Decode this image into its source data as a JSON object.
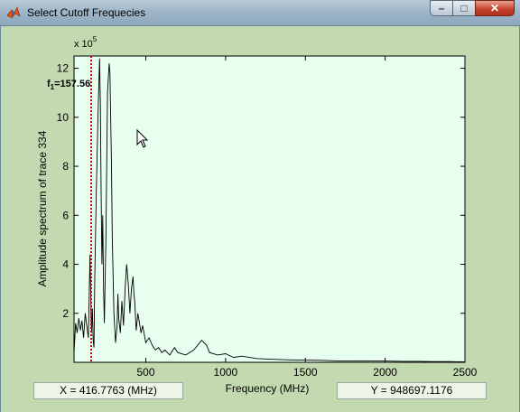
{
  "window": {
    "title": "Select Cutoff Frequecies",
    "buttons": {
      "minimize": "–",
      "maximize": "□",
      "close": "✕"
    }
  },
  "readouts": {
    "x": "X = 416.7763 (MHz)",
    "y": "Y = 948697.1176"
  },
  "colors": {
    "plot_bg": "#e8ffef",
    "figure_bg": "#c3dab0",
    "cutoff": "#cc0000",
    "line": "#000000"
  },
  "chart_data": {
    "type": "line",
    "xlabel": "Frequency (MHz)",
    "ylabel": "Amplitude spectrum of trace 334",
    "xlim": [
      50,
      2500
    ],
    "ylim": [
      0,
      1250000
    ],
    "y_exponent_label": "x 10",
    "y_exponent": "5",
    "xticks": [
      500,
      1000,
      1500,
      2000,
      2500
    ],
    "xtick_labels": [
      "500",
      "1000",
      "1500",
      "2000",
      "2500"
    ],
    "yticks": [
      2,
      4,
      6,
      8,
      10,
      12
    ],
    "ytick_labels": [
      "2",
      "4",
      "6",
      "8",
      "10",
      "12"
    ],
    "grid": false,
    "cutoff": {
      "label": "f",
      "subscript": "1",
      "value_text": "=157.56",
      "x": 157.56
    },
    "series": [
      {
        "x": [
          50,
          60,
          70,
          80,
          90,
          100,
          110,
          120,
          130,
          140,
          150,
          155,
          160,
          165,
          170,
          175,
          180,
          190,
          200,
          210,
          215,
          220,
          225,
          230,
          235,
          240,
          250,
          260,
          270,
          275,
          280,
          285,
          290,
          300,
          310,
          320,
          325,
          330,
          340,
          350,
          360,
          370,
          380,
          390,
          400,
          410,
          420,
          425,
          430,
          440,
          450,
          460,
          470,
          480,
          500,
          520,
          540,
          560,
          580,
          600,
          620,
          650,
          680,
          700,
          750,
          800,
          850,
          880,
          900,
          950,
          1000,
          1050,
          1100,
          1200,
          1300,
          1400,
          1500,
          1600,
          1700,
          1800,
          1900,
          2000,
          2100,
          2200,
          2300,
          2400,
          2500
        ],
        "y": [
          40000,
          160000,
          120000,
          180000,
          130000,
          170000,
          100000,
          200000,
          150000,
          100000,
          440000,
          260000,
          120000,
          220000,
          90000,
          60000,
          350000,
          700000,
          1000000,
          1240000,
          1050000,
          700000,
          400000,
          600000,
          300000,
          160000,
          500000,
          1100000,
          1220000,
          1180000,
          1000000,
          800000,
          500000,
          200000,
          80000,
          150000,
          280000,
          180000,
          120000,
          250000,
          150000,
          300000,
          400000,
          320000,
          200000,
          300000,
          350000,
          280000,
          250000,
          130000,
          200000,
          160000,
          120000,
          150000,
          80000,
          100000,
          70000,
          50000,
          60000,
          40000,
          50000,
          30000,
          60000,
          40000,
          30000,
          50000,
          90000,
          70000,
          40000,
          30000,
          35000,
          20000,
          25000,
          15000,
          12000,
          10000,
          9000,
          8000,
          6000,
          6000,
          5000,
          5000,
          4000,
          4000,
          3000,
          3000,
          2000
        ]
      }
    ]
  }
}
